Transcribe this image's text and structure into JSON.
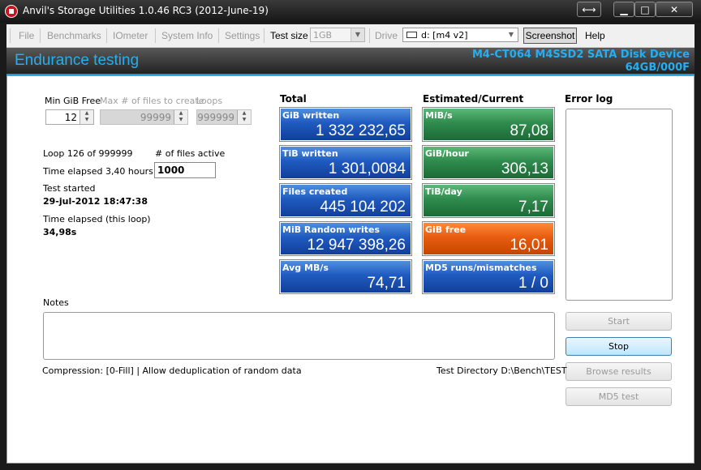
{
  "window": {
    "title": "Anvil's Storage Utilities 1.0.46 RC3 (2012-June-19)"
  },
  "titlebar_buttons": {
    "swap": "⟷",
    "minimize": "▁",
    "maximize": "□",
    "close": "✕"
  },
  "menu": {
    "file": "File",
    "benchmarks": "Benchmarks",
    "iometer": "IOmeter",
    "system_info": "System Info",
    "settings": "Settings",
    "test_size_label": "Test size",
    "test_size_value": "1GB",
    "drive_label": "Drive",
    "drive_value": "d: [m4 v2]",
    "screenshot": "Screenshot",
    "help": "Help"
  },
  "header": {
    "title": "Endurance testing",
    "device_name": "M4-CT064 M4SSD2 SATA Disk Device",
    "device_id": "64GB/000F"
  },
  "settings": {
    "min_gib_free_label": "Min GiB Free",
    "min_gib_free_value": "12",
    "max_files_label": "Max # of files to create",
    "max_files_value": "99999",
    "loops_label": "Loops",
    "loops_value": "999999"
  },
  "status": {
    "loop": "Loop 126 of 999999",
    "files_active_label": "# of files active",
    "files_active_value": "1000",
    "time_elapsed": "Time elapsed 3,40 hours",
    "test_started_label": "Test started",
    "test_started_value": "29-jul-2012 18:47:38",
    "loop_elapsed_label": "Time elapsed (this loop)",
    "loop_elapsed_value": "34,98s"
  },
  "total": {
    "heading": "Total",
    "tiles": [
      {
        "label": "GiB written",
        "value": "1 332 232,65"
      },
      {
        "label": "TiB written",
        "value": "1 301,0084"
      },
      {
        "label": "Files created",
        "value": "445 104 202"
      },
      {
        "label": "MiB Random writes",
        "value": "12 947 398,26"
      },
      {
        "label": "Avg MB/s",
        "value": "74,71"
      }
    ]
  },
  "estimated": {
    "heading": "Estimated/Current",
    "tiles": [
      {
        "label": "MiB/s",
        "value": "87,08"
      },
      {
        "label": "GiB/hour",
        "value": "306,13"
      },
      {
        "label": "TiB/day",
        "value": "7,17"
      },
      {
        "label": "GiB free",
        "value": "16,01"
      },
      {
        "label": "MD5 runs/mismatches",
        "value": "1 / 0"
      }
    ]
  },
  "error_log": {
    "heading": "Error log"
  },
  "notes": {
    "label": "Notes"
  },
  "buttons": {
    "start": "Start",
    "stop": "Stop",
    "browse": "Browse results",
    "md5": "MD5 test"
  },
  "footer": {
    "compression": "Compression: [0-Fill] | Allow deduplication of random data",
    "test_directory": "Test Directory D:\\Bench\\TEST"
  },
  "colors": {
    "accent": "#25aef0",
    "tile_blue": "#1f5bc0",
    "tile_green": "#2f8c4e",
    "tile_orange": "#e85d10"
  }
}
